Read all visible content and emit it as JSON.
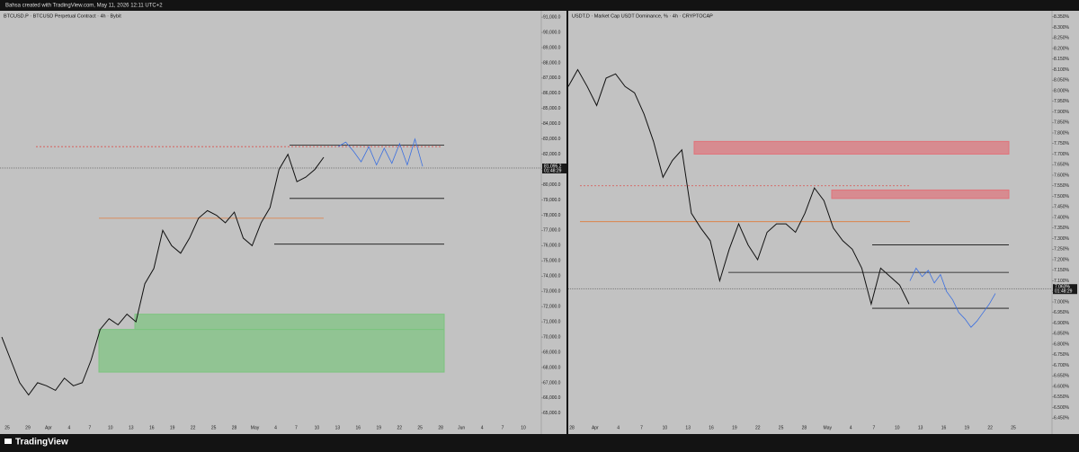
{
  "header": "Bahsa created with TradingView.com, May 11, 2026 12:11 UTC+2",
  "footer": "TradingView",
  "chart_data": [
    {
      "type": "candlestick",
      "title": "BTCUSD.P · BTCUSD Perpetual Contract · 4h · Bybit",
      "ylim": [
        64400,
        91300
      ],
      "yticks": [
        {
          "value": 65000,
          "label": "65,000.0"
        },
        {
          "value": 66000,
          "label": "66,000.0"
        },
        {
          "value": 67000,
          "label": "67,000.0"
        },
        {
          "value": 68000,
          "label": "68,000.0"
        },
        {
          "value": 69000,
          "label": "69,000.0"
        },
        {
          "value": 70000,
          "label": "70,000.0"
        },
        {
          "value": 71000,
          "label": "71,000.0"
        },
        {
          "value": 72000,
          "label": "72,000.0"
        },
        {
          "value": 73000,
          "label": "73,000.0"
        },
        {
          "value": 74000,
          "label": "74,000.0"
        },
        {
          "value": 75000,
          "label": "75,000.0"
        },
        {
          "value": 76000,
          "label": "76,000.0"
        },
        {
          "value": 77000,
          "label": "77,000.0"
        },
        {
          "value": 78000,
          "label": "78,000.0"
        },
        {
          "value": 79000,
          "label": "79,000.0"
        },
        {
          "value": 80000,
          "label": "80,000.0"
        },
        {
          "value": 81000,
          "label": "81,000.0"
        },
        {
          "value": 82000,
          "label": "82,000.0"
        },
        {
          "value": 83000,
          "label": "83,000.0"
        },
        {
          "value": 84000,
          "label": "84,000.0"
        },
        {
          "value": 85000,
          "label": "85,000.0"
        },
        {
          "value": 86000,
          "label": "86,000.0"
        },
        {
          "value": 87000,
          "label": "87,000.0"
        },
        {
          "value": 88000,
          "label": "88,000.0"
        },
        {
          "value": 89000,
          "label": "89,000.0"
        },
        {
          "value": 90000,
          "label": "90,000.0"
        },
        {
          "value": 91000,
          "label": "91,000.0"
        }
      ],
      "categories": [
        "25",
        "29",
        "Apr",
        "4",
        "7",
        "10",
        "13",
        "16",
        "19",
        "22",
        "25",
        "28",
        "May",
        "4",
        "7",
        "10",
        "13",
        "16",
        "19",
        "22",
        "25",
        "28",
        "Jun",
        "4",
        "7",
        "10"
      ],
      "price": [
        70000,
        68500,
        67000,
        66200,
        67000,
        66800,
        66500,
        67300,
        66800,
        67000,
        68500,
        70500,
        71200,
        70800,
        71500,
        71000,
        73500,
        74500,
        77000,
        76000,
        75500,
        76500,
        77800,
        78300,
        78000,
        77500,
        78200,
        76500,
        76000,
        77500,
        78500,
        81000,
        82000,
        80200,
        80500,
        81000,
        81800
      ],
      "price_color": "#111111",
      "projection": [
        82500,
        82800,
        82200,
        81500,
        82500,
        81300,
        82400,
        81400,
        82700,
        81300,
        83000,
        81200
      ],
      "projection_color": "#3b6fe0",
      "zones": [
        {
          "from": 70500,
          "to": 71500,
          "color": "#7cc47f"
        },
        {
          "from": 67700,
          "to": 70500,
          "color": "#7cc47f"
        }
      ],
      "lines": [
        {
          "value": 82500,
          "color": "#d9534f",
          "dashed": true
        },
        {
          "value": 77800,
          "color": "#e07b39",
          "dashed": false
        },
        {
          "value": 82600,
          "color": "#111111",
          "dashed": false
        },
        {
          "value": 79100,
          "color": "#111111",
          "dashed": false
        },
        {
          "value": 76100,
          "color": "#111111",
          "dashed": false
        }
      ],
      "price_tag": {
        "value": 81095.2,
        "label": "81,095.2",
        "timer": "01:48:29"
      }
    },
    {
      "type": "candlestick",
      "title": "USDT.D · Market Cap USDT Dominance, % · 4h · CRYPTOCAP",
      "ylim": [
        6.43,
        8.37
      ],
      "yticks": [
        {
          "value": 6.45,
          "label": "6.450%"
        },
        {
          "value": 6.5,
          "label": "6.500%"
        },
        {
          "value": 6.55,
          "label": "6.550%"
        },
        {
          "value": 6.6,
          "label": "6.600%"
        },
        {
          "value": 6.65,
          "label": "6.650%"
        },
        {
          "value": 6.7,
          "label": "6.700%"
        },
        {
          "value": 6.75,
          "label": "6.750%"
        },
        {
          "value": 6.8,
          "label": "6.800%"
        },
        {
          "value": 6.85,
          "label": "6.850%"
        },
        {
          "value": 6.9,
          "label": "6.900%"
        },
        {
          "value": 6.95,
          "label": "6.950%"
        },
        {
          "value": 7.0,
          "label": "7.000%"
        },
        {
          "value": 7.05,
          "label": "7.050%"
        },
        {
          "value": 7.1,
          "label": "7.100%"
        },
        {
          "value": 7.15,
          "label": "7.150%"
        },
        {
          "value": 7.2,
          "label": "7.200%"
        },
        {
          "value": 7.25,
          "label": "7.250%"
        },
        {
          "value": 7.3,
          "label": "7.300%"
        },
        {
          "value": 7.35,
          "label": "7.350%"
        },
        {
          "value": 7.4,
          "label": "7.400%"
        },
        {
          "value": 7.45,
          "label": "7.450%"
        },
        {
          "value": 7.5,
          "label": "7.500%"
        },
        {
          "value": 7.55,
          "label": "7.550%"
        },
        {
          "value": 7.6,
          "label": "7.600%"
        },
        {
          "value": 7.65,
          "label": "7.650%"
        },
        {
          "value": 7.7,
          "label": "7.700%"
        },
        {
          "value": 7.75,
          "label": "7.750%"
        },
        {
          "value": 7.8,
          "label": "7.800%"
        },
        {
          "value": 7.85,
          "label": "7.850%"
        },
        {
          "value": 7.9,
          "label": "7.900%"
        },
        {
          "value": 7.95,
          "label": "7.950%"
        },
        {
          "value": 8.0,
          "label": "8.000%"
        },
        {
          "value": 8.05,
          "label": "8.050%"
        },
        {
          "value": 8.1,
          "label": "8.100%"
        },
        {
          "value": 8.15,
          "label": "8.150%"
        },
        {
          "value": 8.2,
          "label": "8.200%"
        },
        {
          "value": 8.25,
          "label": "8.250%"
        },
        {
          "value": 8.3,
          "label": "8.300%"
        },
        {
          "value": 8.35,
          "label": "8.350%"
        }
      ],
      "categories": [
        "28",
        "Apr",
        "4",
        "7",
        "10",
        "13",
        "16",
        "19",
        "22",
        "25",
        "28",
        "May",
        "4",
        "7",
        "10",
        "13",
        "16",
        "19",
        "22",
        "25"
      ],
      "price": [
        8.02,
        8.1,
        8.02,
        7.93,
        8.06,
        8.08,
        8.02,
        7.99,
        7.89,
        7.76,
        7.59,
        7.67,
        7.72,
        7.42,
        7.35,
        7.29,
        7.1,
        7.25,
        7.37,
        7.27,
        7.2,
        7.33,
        7.37,
        7.37,
        7.33,
        7.42,
        7.54,
        7.48,
        7.35,
        7.29,
        7.25,
        7.16,
        6.99,
        7.16,
        7.12,
        7.08,
        6.99
      ],
      "price_color": "#111111",
      "projection": [
        7.1,
        7.16,
        7.12,
        7.15,
        7.09,
        7.13,
        7.05,
        7.01,
        6.95,
        6.92,
        6.88,
        6.91,
        6.95,
        6.99,
        7.04
      ],
      "projection_color": "#3b6fe0",
      "zones": [
        {
          "from": 7.7,
          "to": 7.76,
          "color": "#e0737a"
        },
        {
          "from": 7.49,
          "to": 7.53,
          "color": "#e0737a"
        }
      ],
      "lines": [
        {
          "value": 7.55,
          "color": "#d9534f",
          "dashed": true
        },
        {
          "value": 7.38,
          "color": "#e07b39",
          "dashed": false
        },
        {
          "value": 7.27,
          "color": "#111111",
          "dashed": false
        },
        {
          "value": 7.14,
          "color": "#111111",
          "dashed": false
        },
        {
          "value": 6.97,
          "color": "#111111",
          "dashed": false
        }
      ],
      "price_tag": {
        "value": 7.063,
        "label": "7.063%",
        "timer": "01:48:29"
      }
    }
  ]
}
